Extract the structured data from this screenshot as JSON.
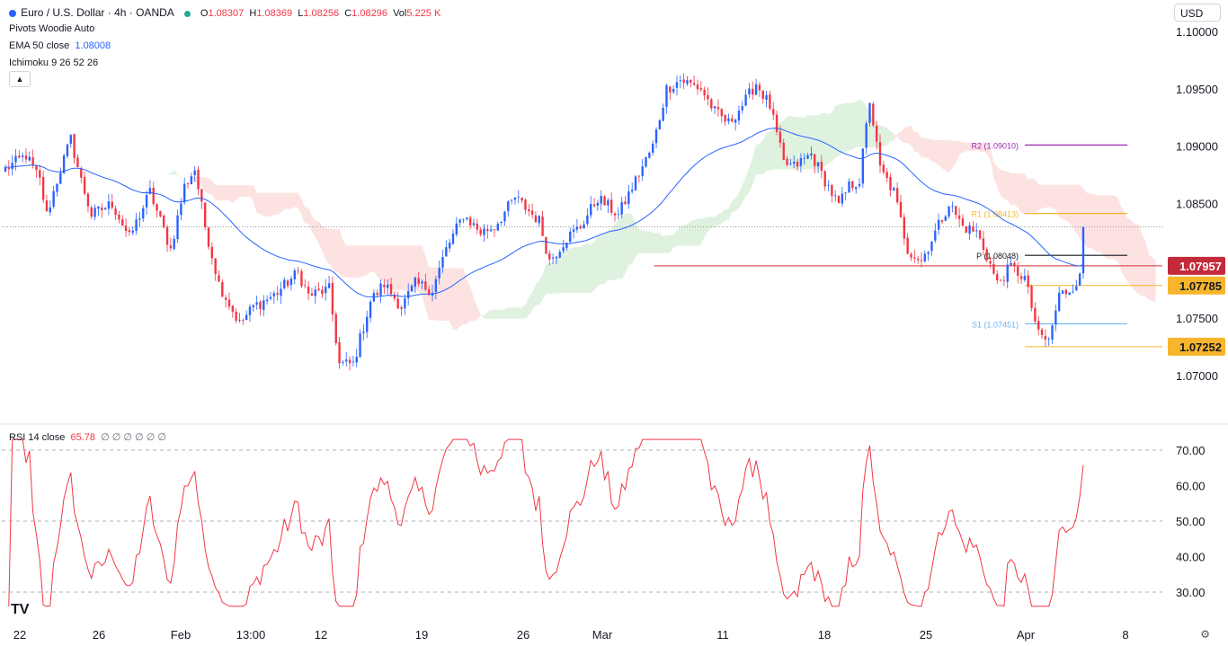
{
  "header": {
    "symbol": "Euro / U.S. Dollar · 4h · OANDA",
    "o_label": "O",
    "o_value": "1.08307",
    "h_label": "H",
    "h_value": "1.08369",
    "l_label": "L",
    "l_value": "1.08256",
    "c_label": "C",
    "c_value": "1.08296",
    "vol_label": "Vol",
    "vol_value": "5.225 K",
    "indicator1": "Pivots Woodie Auto",
    "indicator2_name": "EMA 50 close",
    "indicator2_value": "1.08008",
    "indicator3": "Ichimoku 9 26 52 26",
    "currency": "USD",
    "collapse_icon": "chevron-up-icon",
    "rsi_label": "RSI 14 close",
    "rsi_value": "65.78",
    "rsi_extra": "∅ ∅ ∅ ∅ ∅ ∅"
  },
  "colors": {
    "up": "#2962ff",
    "down": "#f23645",
    "ema": "#2962ff",
    "rsi": "#f23645",
    "cloud_bear": "#fde2e2",
    "cloud_bull": "#dff2df",
    "tag_red": "#c42b3a",
    "tag_orange": "#f7b52c",
    "r2": "#9c27b0",
    "r1": "#f7b52c",
    "pivot": "#131722",
    "s1": "#64b5f6",
    "hline": "#d32f2f"
  },
  "chart_data": [
    {
      "type": "candlestick",
      "title": "Euro / U.S. Dollar · 4h · OANDA",
      "x_tick_labels": [
        "22",
        "26",
        "Feb",
        "13:00",
        "12",
        "19",
        "26",
        "Mar",
        "11",
        "18",
        "25",
        "Apr",
        "8"
      ],
      "y_ticks": [
        1.07,
        1.075,
        1.08,
        1.085,
        1.09,
        1.095,
        1.1
      ],
      "y_tick_labels": [
        "1.07000",
        "1.07500",
        "1.08000",
        "1.08500",
        "1.09000",
        "1.09500",
        "1.10000"
      ],
      "ylim": [
        1.0667,
        1.1007
      ],
      "anchors": [
        {
          "i": 0,
          "p": 1.088
        },
        {
          "i": 6,
          "p": 1.0892
        },
        {
          "i": 10,
          "p": 1.087
        },
        {
          "i": 12,
          "p": 1.084
        },
        {
          "i": 16,
          "p": 1.088
        },
        {
          "i": 19,
          "p": 1.0906
        },
        {
          "i": 22,
          "p": 1.087
        },
        {
          "i": 25,
          "p": 1.084
        },
        {
          "i": 31,
          "p": 1.085
        },
        {
          "i": 36,
          "p": 1.082
        },
        {
          "i": 42,
          "p": 1.086
        },
        {
          "i": 48,
          "p": 1.081
        },
        {
          "i": 52,
          "p": 1.0865
        },
        {
          "i": 55,
          "p": 1.088
        },
        {
          "i": 58,
          "p": 1.083
        },
        {
          "i": 62,
          "p": 1.078
        },
        {
          "i": 68,
          "p": 1.0745
        },
        {
          "i": 72,
          "p": 1.076
        },
        {
          "i": 78,
          "p": 1.077
        },
        {
          "i": 85,
          "p": 1.079
        },
        {
          "i": 88,
          "p": 1.077
        },
        {
          "i": 94,
          "p": 1.0775
        },
        {
          "i": 97,
          "p": 1.071
        },
        {
          "i": 101,
          "p": 1.071
        },
        {
          "i": 106,
          "p": 1.0765
        },
        {
          "i": 110,
          "p": 1.078
        },
        {
          "i": 115,
          "p": 1.076
        },
        {
          "i": 119,
          "p": 1.078
        },
        {
          "i": 124,
          "p": 1.0775
        },
        {
          "i": 128,
          "p": 1.081
        },
        {
          "i": 133,
          "p": 1.084
        },
        {
          "i": 138,
          "p": 1.0825
        },
        {
          "i": 142,
          "p": 1.083
        },
        {
          "i": 148,
          "p": 1.0855
        },
        {
          "i": 155,
          "p": 1.0835
        },
        {
          "i": 158,
          "p": 1.08
        },
        {
          "i": 163,
          "p": 1.082
        },
        {
          "i": 167,
          "p": 1.083
        },
        {
          "i": 172,
          "p": 1.0855
        },
        {
          "i": 178,
          "p": 1.084
        },
        {
          "i": 183,
          "p": 1.087
        },
        {
          "i": 188,
          "p": 1.09
        },
        {
          "i": 192,
          "p": 1.095
        },
        {
          "i": 196,
          "p": 1.0958
        },
        {
          "i": 202,
          "p": 1.095
        },
        {
          "i": 206,
          "p": 1.093
        },
        {
          "i": 210,
          "p": 1.092
        },
        {
          "i": 215,
          "p": 1.094
        },
        {
          "i": 218,
          "p": 1.0955
        },
        {
          "i": 222,
          "p": 1.0935
        },
        {
          "i": 226,
          "p": 1.0885
        },
        {
          "i": 229,
          "p": 1.0882
        },
        {
          "i": 234,
          "p": 1.0893
        },
        {
          "i": 238,
          "p": 1.087
        },
        {
          "i": 242,
          "p": 1.0848
        },
        {
          "i": 245,
          "p": 1.0865
        },
        {
          "i": 248,
          "p": 1.087
        },
        {
          "i": 251,
          "p": 1.094
        },
        {
          "i": 254,
          "p": 1.088
        },
        {
          "i": 258,
          "p": 1.086
        },
        {
          "i": 262,
          "p": 1.081
        },
        {
          "i": 266,
          "p": 1.08
        },
        {
          "i": 270,
          "p": 1.0825
        },
        {
          "i": 274,
          "p": 1.085
        },
        {
          "i": 278,
          "p": 1.083
        },
        {
          "i": 282,
          "p": 1.0825
        },
        {
          "i": 285,
          "p": 1.0805
        },
        {
          "i": 288,
          "p": 1.078
        },
        {
          "i": 292,
          "p": 1.0795
        },
        {
          "i": 296,
          "p": 1.0785
        },
        {
          "i": 300,
          "p": 1.0735
        },
        {
          "i": 303,
          "p": 1.073
        },
        {
          "i": 306,
          "p": 1.077
        },
        {
          "i": 309,
          "p": 1.0775
        },
        {
          "i": 312,
          "p": 1.0785
        },
        {
          "i": 313,
          "p": 1.083
        }
      ],
      "n_candles": 314,
      "last_close": 1.08296,
      "ema_label": "EMA 50",
      "horizontal_line": 1.07957,
      "pivots": [
        {
          "label": "R2 (1.09010)",
          "value": 1.0901,
          "role": "r2"
        },
        {
          "label": "R1 (1.08413)",
          "value": 1.08413,
          "role": "r1"
        },
        {
          "label": "P (1.08048)",
          "value": 1.08048,
          "role": "pivot"
        },
        {
          "label": "S1 (1.07451)",
          "value": 1.07451,
          "role": "s1"
        }
      ],
      "price_tags": [
        {
          "label": "1.07957",
          "value": 1.07957,
          "style": "red"
        },
        {
          "label": "1.07785",
          "value": 1.07785,
          "style": "orange"
        },
        {
          "label": "1.07252",
          "value": 1.07252,
          "style": "orange"
        }
      ],
      "levels": [
        {
          "value": 1.07785,
          "role": "r1"
        },
        {
          "value": 1.07252,
          "role": "r1"
        }
      ],
      "grid": false
    },
    {
      "type": "line",
      "title": "RSI 14 close",
      "y_ticks": [
        30,
        40,
        50,
        60,
        70
      ],
      "y_tick_labels": [
        "30.00",
        "40.00",
        "50.00",
        "60.00",
        "70.00"
      ],
      "ylim": [
        25,
        74
      ],
      "dashed_levels": [
        70,
        50,
        30
      ],
      "last_value": 65.78
    }
  ]
}
